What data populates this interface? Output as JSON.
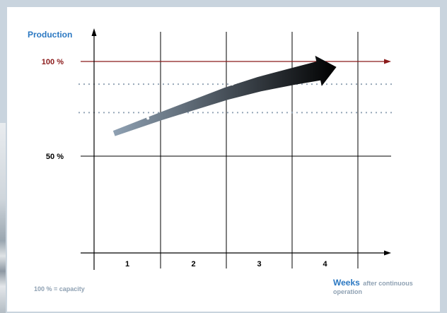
{
  "chart_data": {
    "type": "line",
    "title": "",
    "ylabel": "Production",
    "xlabel": "Weeks",
    "xlabel_suffix": "after continuous operation",
    "categories": [
      "1",
      "2",
      "3",
      "4"
    ],
    "ylim": [
      0,
      100
    ],
    "y_tick_labels": [
      {
        "label": "50 %",
        "value": 50
      },
      {
        "label": "100 %",
        "value": 100
      }
    ],
    "reference_lines": [
      {
        "label": "100 %",
        "value": 100,
        "style": "solid",
        "color": "#8b1a1a"
      },
      {
        "value": 88,
        "style": "dotted",
        "color": "#8fa1b3"
      },
      {
        "value": 73,
        "style": "dotted",
        "color": "#8fa1b3"
      }
    ],
    "series": [
      {
        "points": [
          {
            "x": 0.3,
            "y": 62
          },
          {
            "x": 1.0,
            "y": 71
          },
          {
            "x": 1.5,
            "y": 77
          },
          {
            "x": 2.0,
            "y": 83
          },
          {
            "x": 2.5,
            "y": 88
          },
          {
            "x": 3.0,
            "y": 92
          },
          {
            "x": 3.4,
            "y": 95
          }
        ],
        "markers": [
          {
            "x": 0.81,
            "y": 70
          },
          {
            "x": 1.36,
            "y": 79
          },
          {
            "x": 1.84,
            "y": 86
          },
          {
            "x": 2.09,
            "y": 88
          },
          {
            "x": 2.56,
            "y": 95
          }
        ],
        "gradient": [
          "#8fa1b3",
          "#000000"
        ]
      }
    ],
    "footnote": "100 % = capacity",
    "colors": {
      "accent": "#2b78c2",
      "capacity": "#8b1a1a",
      "note": "#8fa1b3",
      "axis": "#000000"
    }
  }
}
